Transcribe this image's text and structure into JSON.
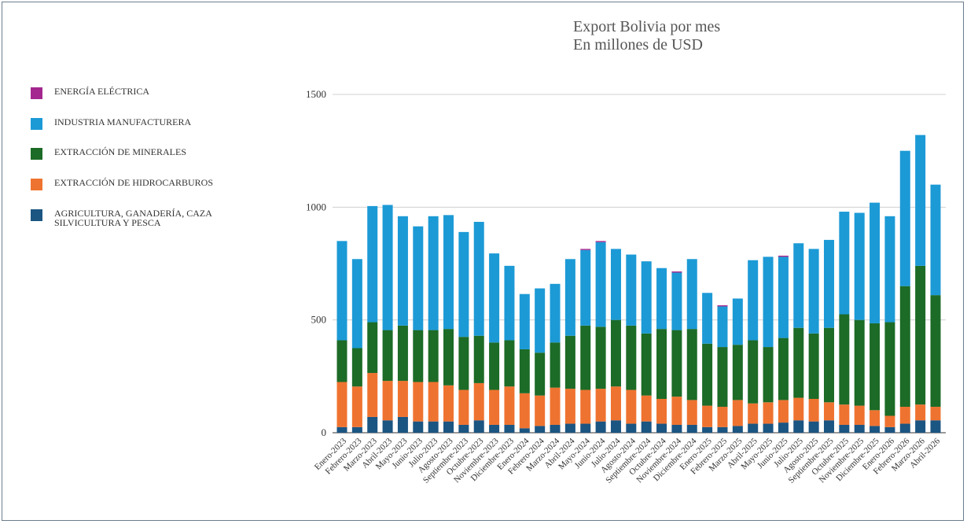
{
  "title_line1": "Export Bolivia por mes",
  "title_line2": "En millones de USD",
  "colors": {
    "energia": "#a3278f",
    "industria": "#1c9ad6",
    "minerales": "#1c6b27",
    "hidrocarburos": "#ef7330",
    "agricultura": "#1b5582",
    "grid": "#d0d0d0",
    "axis": "#333333"
  },
  "legend": [
    {
      "label": "ENERGÍA ELÉCTRICA",
      "color": "#a3278f"
    },
    {
      "label": "INDUSTRIA MANUFACTURERA",
      "color": "#1c9ad6"
    },
    {
      "label": "EXTRACCIÓN  DE MINERALES",
      "color": "#1c6b27"
    },
    {
      "label": "EXTRACCIÓN DE HIDROCARBUROS",
      "color": "#ef7330"
    },
    {
      "label": "AGRICULTURA, GANADERÍA, CAZA\nSILVICULTURA Y PESCA",
      "color": "#1b5582"
    }
  ],
  "chart_data": {
    "type": "bar",
    "stacked": true,
    "title": "Export Bolivia por mes\nEn millones de USD",
    "ylim": [
      0,
      1500
    ],
    "yticks": [
      0,
      500,
      1000,
      1500
    ],
    "grid": true,
    "legend_position": "left",
    "categories": [
      "Enero-2023",
      "Febrero-2023",
      "Marzo-2023",
      "Abril-2023",
      "Mayo-2023",
      "Junio-2023",
      "Julio-2023",
      "Agosto-2023",
      "Septiembre-2023",
      "Octubre-2023",
      "Noviembre-2023",
      "Diciembre-2023",
      "Enero-2024",
      "Febrero-2024",
      "Marzo-2024",
      "Abril-2024",
      "Mayo-2024",
      "Junio-2024",
      "Julio-2024",
      "Agosto-2024",
      "Septiembre-2024",
      "Octubre-2024",
      "Noviembre-2024",
      "Diciembre-2024",
      "Enero-2025",
      "Febrero-2025",
      "Marzo-2025",
      "Abril-2025",
      "Mayo-2025",
      "Junio-2025",
      "Julio-2025",
      "Agosto-2025",
      "Septiembre-2025",
      "Octubre-2025",
      "Noviembre-2025",
      "Diciembre-2025",
      "Enero-2026",
      "Febrero-2026",
      "Marzo-2026",
      "Abril-2026"
    ],
    "series": [
      {
        "name": "AGRICULTURA, GANADERÍA, CAZA SILVICULTURA Y PESCA",
        "color": "#1b5582",
        "values": [
          25,
          25,
          70,
          55,
          70,
          50,
          50,
          50,
          35,
          55,
          35,
          35,
          20,
          30,
          35,
          40,
          40,
          50,
          55,
          40,
          50,
          40,
          35,
          35,
          25,
          25,
          30,
          40,
          40,
          45,
          55,
          50,
          55,
          35,
          35,
          30,
          25,
          40,
          55,
          55
        ]
      },
      {
        "name": "EXTRACCIÓN DE HIDROCARBUROS",
        "color": "#ef7330",
        "values": [
          200,
          180,
          195,
          175,
          160,
          175,
          175,
          160,
          155,
          165,
          155,
          170,
          155,
          135,
          165,
          155,
          150,
          145,
          150,
          150,
          115,
          110,
          125,
          110,
          95,
          90,
          115,
          90,
          95,
          100,
          100,
          100,
          80,
          90,
          85,
          70,
          50,
          75,
          70,
          60
        ]
      },
      {
        "name": "EXTRACCIÓN  DE MINERALES",
        "color": "#1c6b27",
        "values": [
          185,
          170,
          225,
          225,
          245,
          230,
          230,
          250,
          235,
          210,
          210,
          205,
          195,
          190,
          200,
          235,
          285,
          275,
          295,
          285,
          275,
          310,
          295,
          315,
          275,
          265,
          245,
          280,
          245,
          275,
          310,
          290,
          330,
          400,
          380,
          385,
          415,
          535,
          615,
          495
        ]
      },
      {
        "name": "INDUSTRIA MANUFACTURERA",
        "color": "#1c9ad6",
        "values": [
          440,
          395,
          515,
          555,
          485,
          460,
          505,
          505,
          465,
          505,
          395,
          330,
          245,
          285,
          260,
          340,
          335,
          375,
          315,
          315,
          320,
          270,
          255,
          310,
          225,
          180,
          205,
          355,
          400,
          360,
          375,
          375,
          390,
          455,
          475,
          535,
          470,
          600,
          580,
          490
        ]
      },
      {
        "name": "ENERGÍA ELÉCTRICA",
        "color": "#a3278f",
        "values": [
          0,
          0,
          0,
          0,
          0,
          0,
          0,
          0,
          0,
          0,
          0,
          0,
          0,
          0,
          0,
          0,
          5,
          5,
          0,
          0,
          0,
          0,
          5,
          0,
          0,
          5,
          0,
          0,
          0,
          5,
          0,
          0,
          0,
          0,
          0,
          0,
          0,
          0,
          0,
          0
        ]
      }
    ]
  }
}
